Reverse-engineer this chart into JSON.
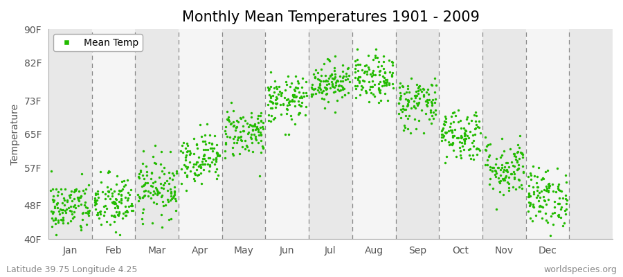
{
  "title": "Monthly Mean Temperatures 1901 - 2009",
  "ylabel": "Temperature",
  "bottom_left_text": "Latitude 39.75 Longitude 4.25",
  "bottom_right_text": "worldspecies.org",
  "legend_label": "Mean Temp",
  "ytick_labels": [
    "40F",
    "48F",
    "57F",
    "65F",
    "73F",
    "82F",
    "90F"
  ],
  "ytick_values": [
    40,
    48,
    57,
    65,
    73,
    82,
    90
  ],
  "ylim": [
    40,
    90
  ],
  "xlim": [
    0,
    13
  ],
  "months": [
    "Jan",
    "Feb",
    "Mar",
    "Apr",
    "May",
    "Jun",
    "Jul",
    "Aug",
    "Sep",
    "Oct",
    "Nov",
    "Dec"
  ],
  "n_years": 109,
  "dot_color": "#22bb00",
  "dot_size": 6,
  "background_color": "#e8e8e8",
  "band_color_white": "#f5f5f5",
  "mean_temps_by_month": [
    47.5,
    48.5,
    52.5,
    59.5,
    65.5,
    73.0,
    77.5,
    78.0,
    72.5,
    65.0,
    57.0,
    50.0
  ],
  "std_temps_by_month": [
    3.2,
    3.5,
    3.5,
    3.0,
    3.0,
    2.8,
    2.5,
    2.8,
    3.2,
    3.2,
    3.5,
    3.5
  ],
  "title_fontsize": 15,
  "axis_fontsize": 10,
  "tick_fontsize": 10,
  "annotation_fontsize": 9
}
